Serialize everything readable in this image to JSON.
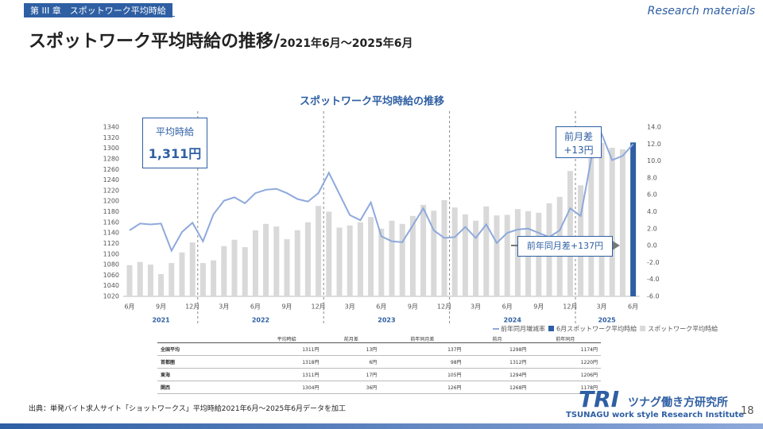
{
  "slide": {
    "chapter": "第 III 章　スポットワーク平均時給",
    "tag": "Research materials",
    "title": "スポットワーク平均時給の推移/",
    "title_sub": "2021年6月～2025年6月",
    "source": "出典：単発バイト求人サイト「ショットワークス」平均時給2021年6月～2025年6月データを加工",
    "logo": "TRI",
    "logo_jp": "ツナグ働き方研究所",
    "logo_en": "TSUNAGU work style Research Institute",
    "page": "18"
  },
  "chart_data": {
    "type": "bar_line",
    "title": "スポットワーク平均時給の推移",
    "categories": [
      "6月",
      null,
      null,
      "9月",
      null,
      null,
      "12月",
      null,
      null,
      "3月",
      null,
      null,
      "6月",
      null,
      null,
      "9月",
      null,
      null,
      "12月",
      null,
      null,
      "3月",
      null,
      null,
      "6月",
      null,
      null,
      "9月",
      null,
      null,
      "12月",
      null,
      null,
      "3月",
      null,
      null,
      "6月",
      null,
      null,
      "9月",
      null,
      null,
      "12月",
      null,
      null,
      "3月",
      null,
      null,
      "6月"
    ],
    "years": [
      "2021",
      "2022",
      "2023",
      "2024",
      "2025"
    ],
    "series": [
      {
        "name": "スポットワーク平均時給",
        "color": "#d9d9d9",
        "values": [
          1079,
          1085,
          1080,
          1062,
          1083,
          1103,
          1122,
          1083,
          1088,
          1115,
          1127,
          1113,
          1145,
          1157,
          1152,
          1128,
          1145,
          1160,
          1191,
          1180,
          1150,
          1154,
          1160,
          1170,
          1148,
          1163,
          1157,
          1172,
          1193,
          1182,
          1202,
          1188,
          1175,
          1163,
          1190,
          1173,
          1174,
          1185,
          1181,
          1178,
          1196,
          1208,
          1257,
          1230,
          1287,
          1310,
          1301,
          1298,
          null
        ]
      },
      {
        "name": "6月スポットワーク平均時給",
        "color": "#2e5fa3",
        "values": [
          null,
          null,
          null,
          null,
          null,
          null,
          null,
          null,
          null,
          null,
          null,
          null,
          null,
          null,
          null,
          null,
          null,
          null,
          null,
          null,
          null,
          null,
          null,
          null,
          null,
          null,
          null,
          null,
          null,
          null,
          null,
          null,
          null,
          null,
          null,
          null,
          null,
          null,
          null,
          null,
          null,
          null,
          null,
          null,
          null,
          null,
          null,
          null,
          1311
        ]
      },
      {
        "name": "前年同月増減率",
        "color": "#8ea9db",
        "axis": "y2",
        "values": [
          1.8,
          2.6,
          2.5,
          2.6,
          -0.6,
          1.6,
          2.7,
          0.5,
          3.7,
          5.3,
          5.7,
          5.0,
          6.2,
          6.6,
          6.7,
          6.2,
          5.5,
          5.2,
          6.2,
          8.6,
          6.1,
          3.6,
          3.0,
          5.1,
          1.1,
          0.5,
          0.4,
          2.4,
          4.4,
          1.8,
          0.9,
          1.0,
          2.2,
          0.9,
          2.5,
          0.3,
          1.5,
          1.9,
          2.0,
          1.5,
          1.0,
          1.8,
          4.4,
          3.5,
          10.2,
          13.2,
          10.1,
          10.6,
          12.0
        ]
      }
    ],
    "ylim": [
      1020,
      1340
    ],
    "yticks": [
      1020,
      1040,
      1060,
      1080,
      1100,
      1120,
      1140,
      1160,
      1180,
      1200,
      1220,
      1240,
      1260,
      1280,
      1300,
      1320,
      1340
    ],
    "y2lim": [
      -6,
      14
    ],
    "y2ticks": [
      {
        "value": -6,
        "label": "-6.0"
      },
      {
        "value": -4,
        "label": "-4.0"
      },
      {
        "value": -2,
        "label": "-2.0"
      },
      {
        "value": 0,
        "label": "0.0"
      },
      {
        "value": 2,
        "label": "2.0"
      },
      {
        "value": 4,
        "label": "4.0"
      },
      {
        "value": 6,
        "label": "6.0"
      },
      {
        "value": 8,
        "label": "8.0"
      },
      {
        "value": 10,
        "label": "10.0"
      },
      {
        "value": 12,
        "label": "12.0"
      },
      {
        "value": 14,
        "label": "14.0"
      }
    ],
    "callouts": {
      "average": [
        "平均時給",
        "1,311円"
      ],
      "mom": [
        "前月差",
        "+13円"
      ],
      "yoy": "前年同月差+137円"
    }
  },
  "table": {
    "header": [
      "平均時給",
      "前月差",
      "前年同月差",
      "前月",
      "前年同月"
    ],
    "rows": [
      [
        "全国平均",
        "1311円",
        "13円",
        "137円",
        "1298円",
        "1174円"
      ],
      [
        "首都圏",
        "1318円",
        "6円",
        "98円",
        "1312円",
        "1220円"
      ],
      [
        "東海",
        "1311円",
        "17円",
        "105円",
        "1294円",
        "1206円"
      ],
      [
        "関西",
        "1304円",
        "36円",
        "126円",
        "1268円",
        "1178円"
      ]
    ]
  }
}
